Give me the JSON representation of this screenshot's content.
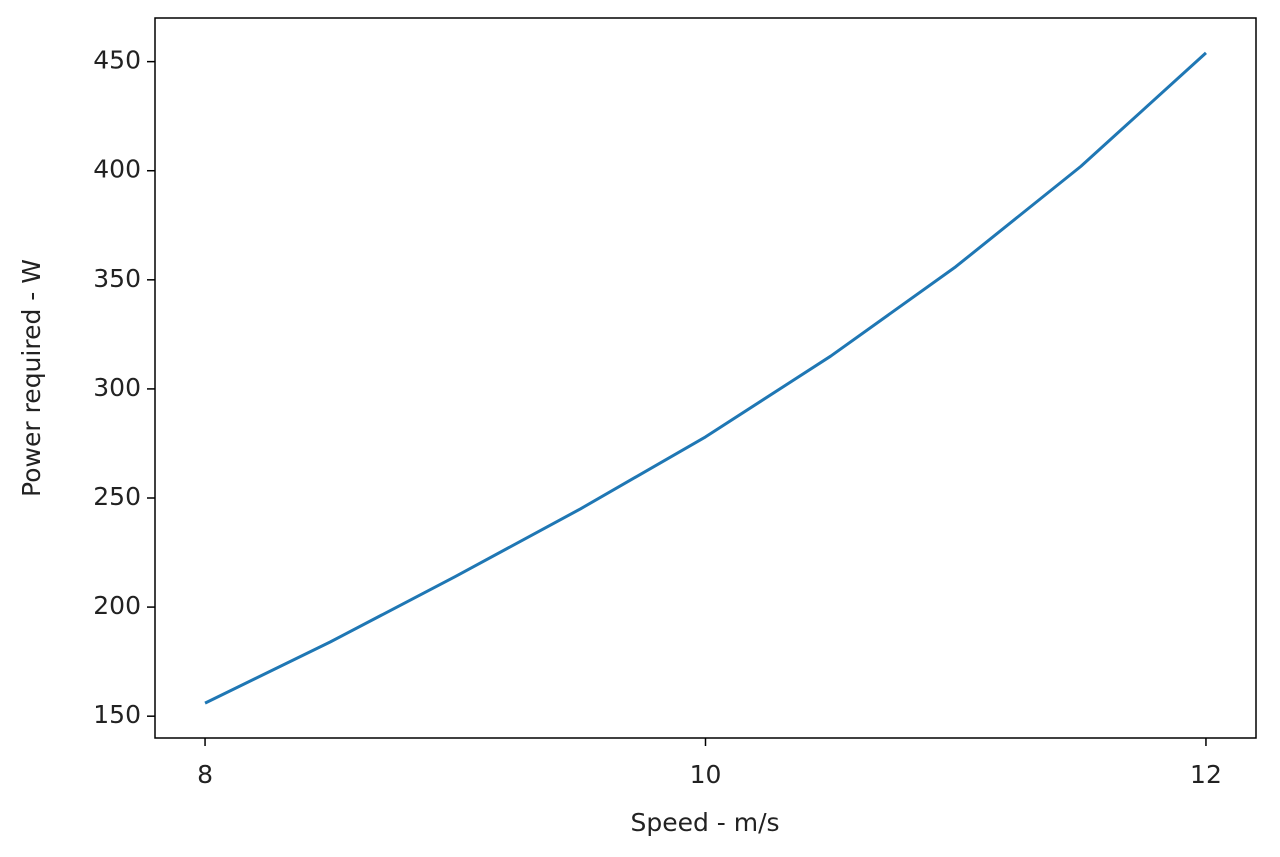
{
  "chart_data": {
    "type": "line",
    "x_label": "Speed - m/s",
    "y_label": "Power required - W",
    "x": [
      8,
      8.5,
      9,
      9.5,
      10,
      10.5,
      11,
      11.5,
      12
    ],
    "series": [
      {
        "color": "#1f77b4",
        "values": [
          156,
          184,
          214,
          245,
          278,
          315,
          356,
          402,
          454
        ]
      }
    ],
    "xlim": [
      7.8,
      12.2
    ],
    "xticks": [
      8,
      10,
      12
    ],
    "ylim": [
      140,
      470
    ],
    "yticks": [
      150,
      200,
      250,
      300,
      350,
      400,
      450
    ],
    "grid": false
  }
}
